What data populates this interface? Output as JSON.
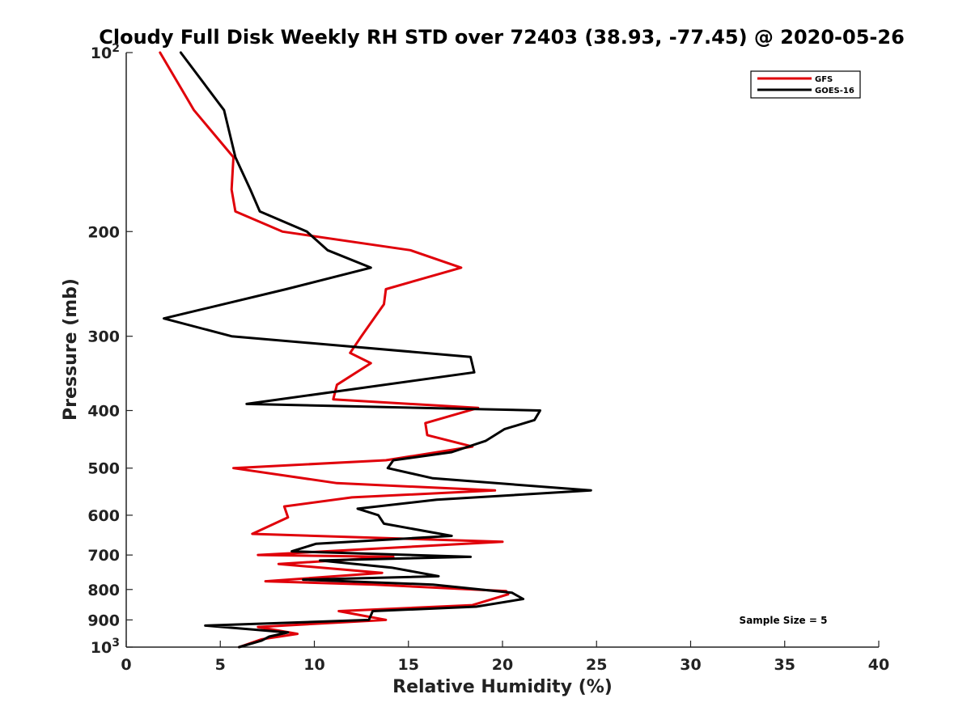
{
  "chart_data": {
    "type": "line",
    "title": "Cloudy Full Disk Weekly RH STD over 72403 (38.93, -77.45) @ 2020-05-26",
    "xlabel": "Relative Humidity (%)",
    "ylabel": "Pressure (mb)",
    "xlim": [
      0,
      40
    ],
    "ylim": [
      100,
      1000
    ],
    "y_scale": "log",
    "y_reversed": true,
    "grid": false,
    "legend_position": "top-right",
    "x_ticks": [
      "0",
      "5",
      "10",
      "15",
      "20",
      "25",
      "30",
      "35",
      "40"
    ],
    "y_ticks": [
      {
        "value": 100,
        "label": "10",
        "sup": "2"
      },
      {
        "value": 200,
        "label": "200",
        "sup": ""
      },
      {
        "value": 300,
        "label": "300",
        "sup": ""
      },
      {
        "value": 400,
        "label": "400",
        "sup": ""
      },
      {
        "value": 500,
        "label": "500",
        "sup": ""
      },
      {
        "value": 600,
        "label": "600",
        "sup": ""
      },
      {
        "value": 700,
        "label": "700",
        "sup": ""
      },
      {
        "value": 800,
        "label": "800",
        "sup": ""
      },
      {
        "value": 900,
        "label": "900",
        "sup": ""
      },
      {
        "value": 1000,
        "label": "10",
        "sup": "3"
      }
    ],
    "annotation": "Sample Size = 5",
    "series": [
      {
        "name": "GFS",
        "color": "#e0000a",
        "points": [
          [
            1.8,
            100
          ],
          [
            3.6,
            125
          ],
          [
            5.7,
            150
          ],
          [
            5.6,
            170
          ],
          [
            5.8,
            185
          ],
          [
            8.3,
            200
          ],
          [
            15.1,
            215
          ],
          [
            17.8,
            230
          ],
          [
            13.8,
            250
          ],
          [
            13.7,
            265
          ],
          [
            12.5,
            300
          ],
          [
            11.9,
            320
          ],
          [
            13.0,
            333
          ],
          [
            11.2,
            362
          ],
          [
            11.0,
            383
          ],
          [
            18.7,
            396
          ],
          [
            15.9,
            420
          ],
          [
            16.0,
            440
          ],
          [
            18.4,
            460
          ],
          [
            13.8,
            485
          ],
          [
            5.7,
            500
          ],
          [
            11.2,
            530
          ],
          [
            19.6,
            545
          ],
          [
            12.0,
            560
          ],
          [
            8.4,
            580
          ],
          [
            8.6,
            605
          ],
          [
            6.7,
            645
          ],
          [
            20.0,
            665
          ],
          [
            7.0,
            700
          ],
          [
            14.2,
            705
          ],
          [
            8.1,
            725
          ],
          [
            13.6,
            750
          ],
          [
            7.4,
            775
          ],
          [
            13.2,
            785
          ],
          [
            20.2,
            805
          ],
          [
            20.3,
            815
          ],
          [
            18.4,
            850
          ],
          [
            11.3,
            870
          ],
          [
            13.8,
            900
          ],
          [
            7.0,
            925
          ],
          [
            9.1,
            950
          ],
          [
            7.2,
            970
          ],
          [
            6.0,
            1000
          ]
        ]
      },
      {
        "name": "GOES-16",
        "color": "#000000",
        "points": [
          [
            2.9,
            100
          ],
          [
            5.2,
            125
          ],
          [
            5.8,
            150
          ],
          [
            6.6,
            170
          ],
          [
            7.1,
            185
          ],
          [
            9.6,
            200
          ],
          [
            10.7,
            215
          ],
          [
            13.0,
            230
          ],
          [
            8.5,
            250
          ],
          [
            2.0,
            280
          ],
          [
            5.6,
            300
          ],
          [
            18.3,
            325
          ],
          [
            18.5,
            345
          ],
          [
            6.4,
            390
          ],
          [
            22.0,
            400
          ],
          [
            21.7,
            415
          ],
          [
            20.1,
            430
          ],
          [
            19.1,
            450
          ],
          [
            17.3,
            470
          ],
          [
            14.2,
            485
          ],
          [
            13.9,
            500
          ],
          [
            16.3,
            520
          ],
          [
            24.7,
            545
          ],
          [
            16.5,
            565
          ],
          [
            12.3,
            585
          ],
          [
            13.4,
            600
          ],
          [
            13.7,
            620
          ],
          [
            17.3,
            650
          ],
          [
            10.1,
            670
          ],
          [
            8.8,
            690
          ],
          [
            18.3,
            705
          ],
          [
            10.3,
            715
          ],
          [
            14.1,
            735
          ],
          [
            16.6,
            760
          ],
          [
            9.4,
            770
          ],
          [
            16.3,
            785
          ],
          [
            20.5,
            810
          ],
          [
            21.1,
            830
          ],
          [
            18.6,
            855
          ],
          [
            13.1,
            870
          ],
          [
            12.9,
            900
          ],
          [
            4.2,
            920
          ],
          [
            8.6,
            945
          ],
          [
            7.6,
            960
          ],
          [
            7.2,
            975
          ],
          [
            6.0,
            1000
          ]
        ]
      }
    ]
  }
}
